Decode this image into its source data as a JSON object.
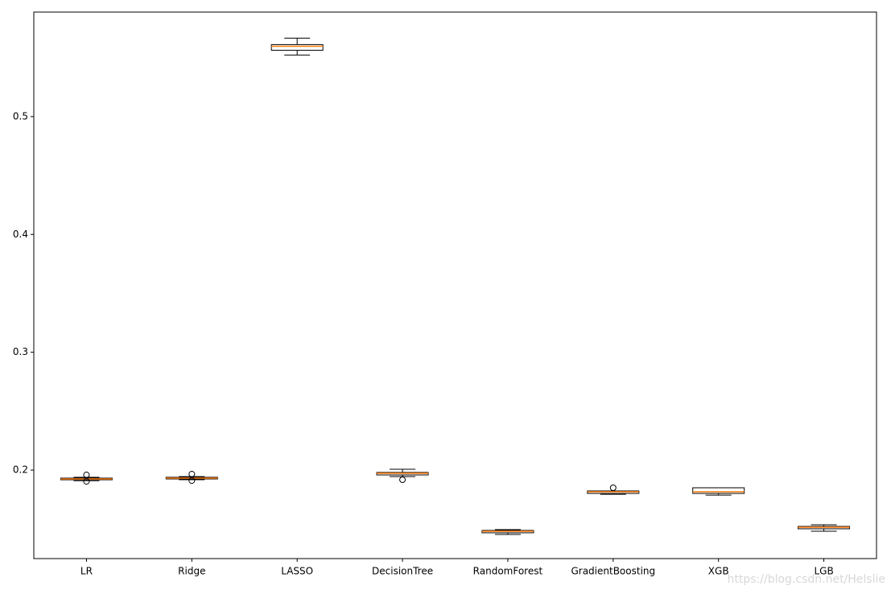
{
  "chart_data": {
    "type": "box",
    "categories": [
      "LR",
      "Ridge",
      "LASSO",
      "DecisionTree",
      "RandomForest",
      "GradientBoosting",
      "XGB",
      "LGB"
    ],
    "boxes": [
      {
        "whislo": 0.191,
        "q1": 0.1918,
        "med": 0.1925,
        "q3": 0.1932,
        "whishi": 0.1939,
        "fliers": [
          0.1959,
          0.1904
        ]
      },
      {
        "whislo": 0.1918,
        "q1": 0.1925,
        "med": 0.1932,
        "q3": 0.1939,
        "whishi": 0.1945,
        "fliers": [
          0.1966,
          0.1911
        ]
      },
      {
        "whislo": 0.5522,
        "q1": 0.5563,
        "med": 0.5597,
        "q3": 0.5611,
        "whishi": 0.5666,
        "fliers": []
      },
      {
        "whislo": 0.1945,
        "q1": 0.1959,
        "med": 0.1973,
        "q3": 0.198,
        "whishi": 0.2007,
        "fliers": [
          0.1918
        ]
      },
      {
        "whislo": 0.1454,
        "q1": 0.1468,
        "med": 0.1481,
        "q3": 0.1488,
        "whishi": 0.1495,
        "fliers": []
      },
      {
        "whislo": 0.1795,
        "q1": 0.1802,
        "med": 0.1816,
        "q3": 0.1823,
        "whishi": 0.1823,
        "fliers": [
          0.185
        ]
      },
      {
        "whislo": 0.1788,
        "q1": 0.1802,
        "med": 0.1816,
        "q3": 0.185,
        "whishi": 0.185,
        "fliers": []
      },
      {
        "whislo": 0.1481,
        "q1": 0.1502,
        "med": 0.1515,
        "q3": 0.1522,
        "whishi": 0.1536,
        "fliers": []
      }
    ],
    "median_color": "#ff7f0e",
    "box_color": "#000000",
    "ylim": [
      0.1249,
      0.5887
    ],
    "yticks": [
      0.2,
      0.3,
      0.4,
      0.5
    ]
  },
  "watermark": "https://blog.csdn.net/Helslie"
}
